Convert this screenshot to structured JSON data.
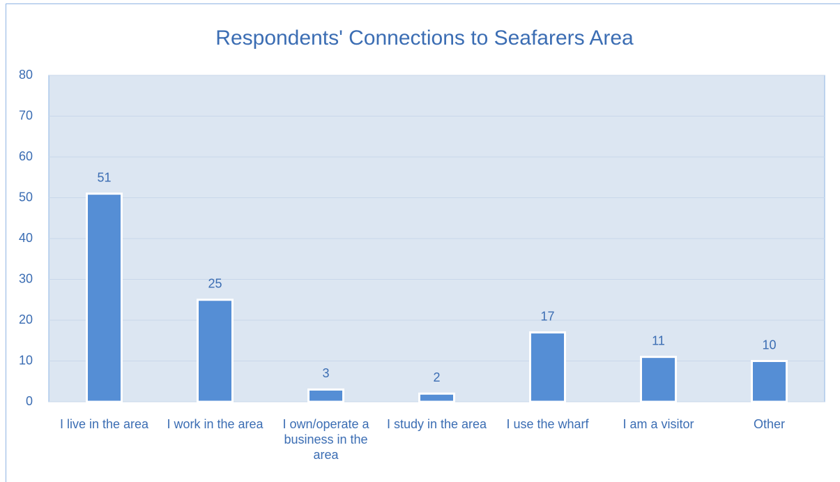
{
  "chart_data": {
    "type": "bar",
    "title": "Respondents' Connections to Seafarers Area",
    "categories": [
      "I live in the area",
      "I work in the area",
      "I own/operate a business in the area",
      "I study in the area",
      "I use the wharf",
      "I am a visitor",
      "Other"
    ],
    "values": [
      51,
      25,
      3,
      2,
      17,
      11,
      10
    ],
    "color": "#558ed5",
    "ylim": [
      0,
      80
    ],
    "yticks": [
      0,
      10,
      20,
      30,
      40,
      50,
      60,
      70,
      80
    ],
    "grid": true
  }
}
